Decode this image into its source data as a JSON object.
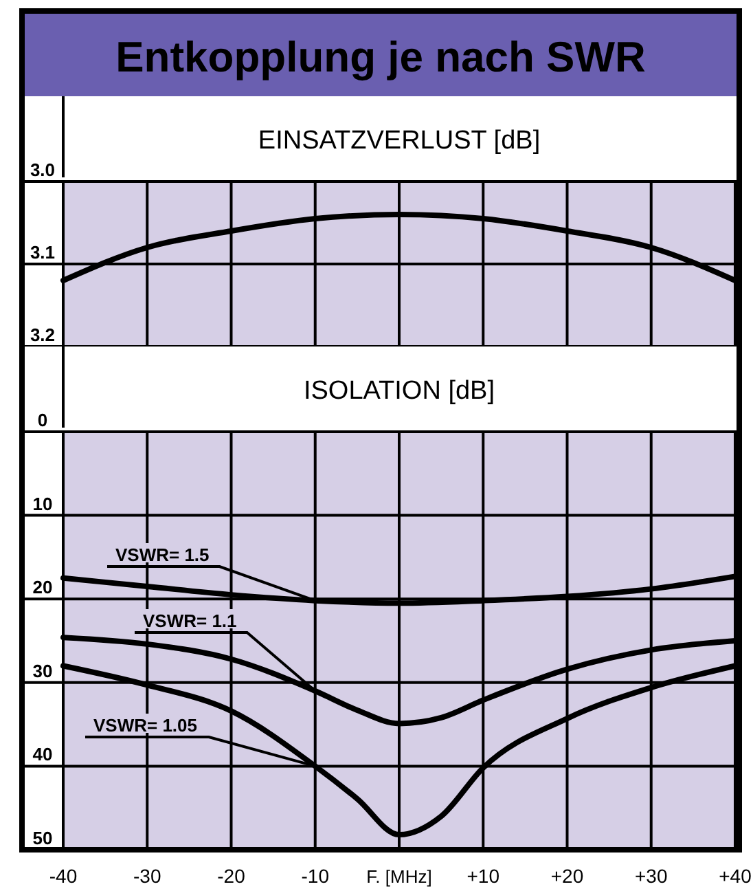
{
  "chart_data": [
    {
      "type": "line",
      "title": "Entkopplung je nach SWR",
      "subtitle": "EINSATZVERLUST [dB]",
      "x": [
        -40,
        -30,
        -20,
        -10,
        0,
        10,
        20,
        30,
        40
      ],
      "xlim": [
        -40,
        40
      ],
      "xticks": [
        -40,
        -30,
        -20,
        -10,
        0,
        10,
        20,
        30,
        40
      ],
      "ylim": [
        3.2,
        3.0
      ],
      "yticks": [
        {
          "value": 3.0,
          "label": "3.0"
        },
        3.1,
        3.2
      ],
      "grid": true,
      "tick_labels": "y",
      "series": [
        {
          "color": "#000000",
          "values": [
            3.12,
            3.08,
            3.06,
            3.045,
            3.04,
            3.045,
            3.06,
            3.08,
            3.12
          ]
        }
      ]
    },
    {
      "type": "line",
      "title": "ISOLATION [dB]",
      "xlabel": "F. [MHz]",
      "xlim": [
        -40,
        40
      ],
      "xticks": [
        -40,
        -30,
        -20,
        -10,
        {
          "value": 0,
          "label": null
        },
        {
          "value": 10,
          "label": "+10"
        },
        {
          "value": 20,
          "label": "+20"
        },
        {
          "value": 30,
          "label": "+30"
        },
        {
          "value": 40,
          "label": "+40"
        }
      ],
      "ylim": [
        50,
        0
      ],
      "yticks": [
        0,
        10,
        20,
        30,
        40,
        50
      ],
      "grid": true,
      "series": [
        {
          "name": "VSWR= 1.5",
          "color": "#000000",
          "x": [
            -40,
            -30,
            -20,
            -10,
            0,
            10,
            20,
            30,
            40
          ],
          "values": [
            17.5,
            18.5,
            19.5,
            20.2,
            20.5,
            20.2,
            19.7,
            18.8,
            17.3
          ]
        },
        {
          "name": "VSWR= 1.1",
          "color": "#000000",
          "x": [
            -40,
            -30,
            -20,
            -10,
            -5,
            0,
            5,
            10,
            20,
            30,
            40
          ],
          "values": [
            24.6,
            25.4,
            27.2,
            31,
            33.3,
            34.9,
            34.2,
            32.1,
            28.4,
            26.1,
            25
          ]
        },
        {
          "name": "VSWR= 1.05",
          "color": "#000000",
          "x": [
            -40,
            -30,
            -20,
            -10,
            -5,
            0,
            5,
            10,
            20,
            30,
            40
          ],
          "values": [
            28,
            30.3,
            33.4,
            40,
            43.9,
            48.2,
            46,
            40.2,
            34.3,
            30.6,
            28
          ]
        }
      ]
    }
  ]
}
